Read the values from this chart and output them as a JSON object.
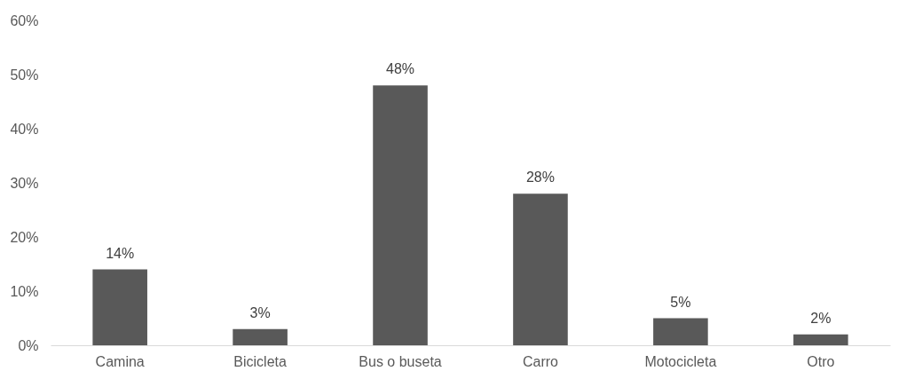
{
  "chart_data": {
    "type": "bar",
    "categories": [
      "Camina",
      "Bicicleta",
      "Bus o buseta",
      "Carro",
      "Motocicleta",
      "Otro"
    ],
    "values": [
      14,
      3,
      48,
      28,
      5,
      2
    ],
    "value_labels": [
      "14%",
      "3%",
      "48%",
      "28%",
      "5%",
      "2%"
    ],
    "color": "#595959",
    "ylim": [
      0,
      60
    ],
    "yticks": [
      {
        "value": 0,
        "label": "0%"
      },
      {
        "value": 10,
        "label": "10%"
      },
      {
        "value": 20,
        "label": "20%"
      },
      {
        "value": 30,
        "label": "30%"
      },
      {
        "value": 40,
        "label": "40%"
      },
      {
        "value": 50,
        "label": "50%"
      },
      {
        "value": 60,
        "label": "60%"
      }
    ],
    "grid": false
  }
}
